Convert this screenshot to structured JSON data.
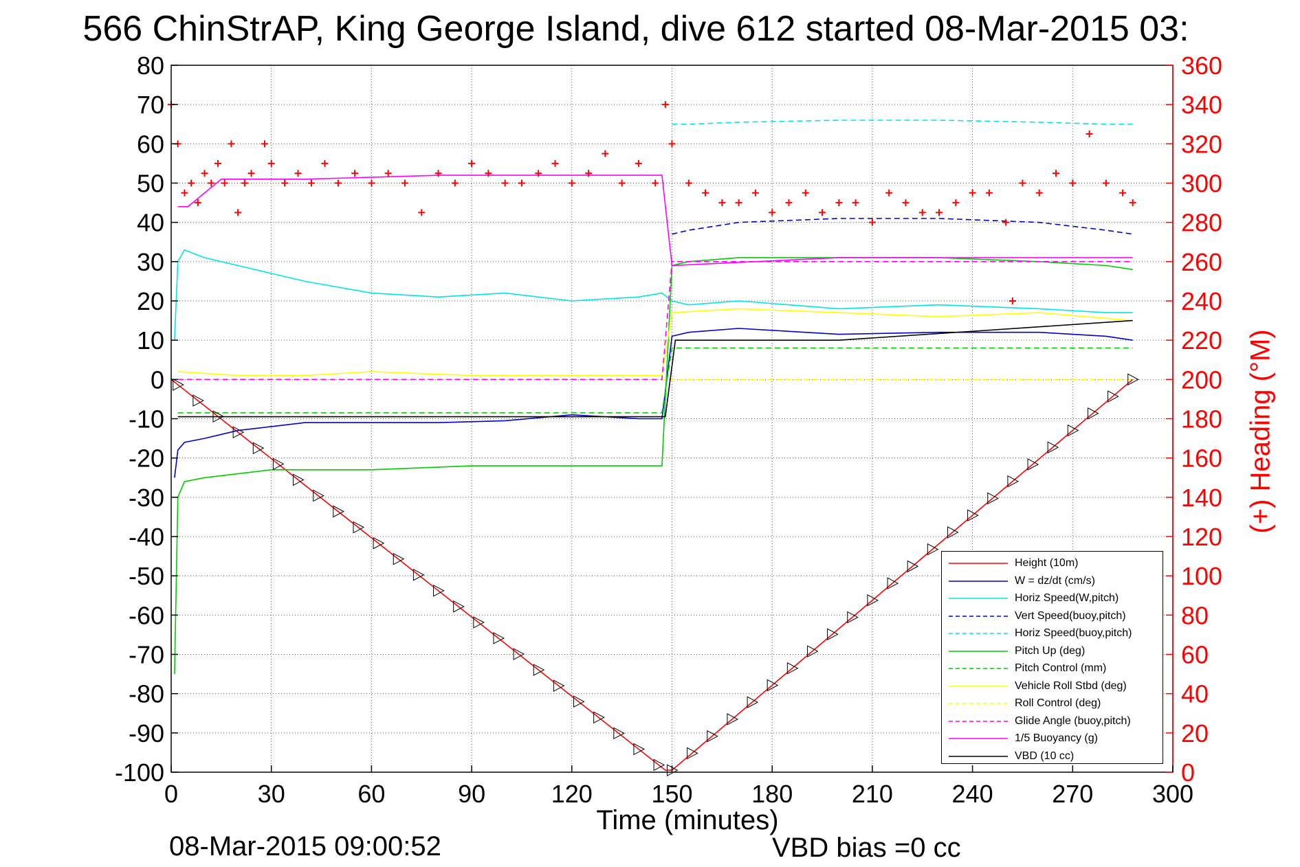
{
  "title": "566 ChinStrAP, King George Island, dive 612 started 08-Mar-2015 03:",
  "timestamp": "08-Mar-2015 09:00:52",
  "vbd_bias": "VBD bias =0 cc",
  "chart_data": {
    "type": "line",
    "title": "566 ChinStrAP, King George Island, dive 612 started 08-Mar-2015 03:",
    "xlabel": "Time (minutes)",
    "ylabel": "",
    "ylabel_right": "(+) Heading (°M)",
    "xlim": [
      0,
      300
    ],
    "ylim": [
      -100,
      80
    ],
    "ylim_right": [
      0,
      360
    ],
    "xticks": [
      "0",
      "30",
      "60",
      "90",
      "120",
      "150",
      "180",
      "210",
      "240",
      "270",
      "300"
    ],
    "yticks": [
      "-100",
      "-90",
      "-80",
      "-70",
      "-60",
      "-50",
      "-40",
      "-30",
      "-20",
      "-10",
      "0",
      "10",
      "20",
      "30",
      "40",
      "50",
      "60",
      "70",
      "80"
    ],
    "yticks_right": [
      "0",
      "20",
      "40",
      "60",
      "80",
      "100",
      "120",
      "140",
      "160",
      "180",
      "200",
      "220",
      "240",
      "260",
      "280",
      "300",
      "320",
      "340",
      "360"
    ],
    "grid": true,
    "legend_position": "bottom-right",
    "series": [
      {
        "name": "Height (10m)",
        "color": "#ff0000",
        "style": "solid",
        "x": [
          0,
          148,
          150,
          288
        ],
        "y": [
          0,
          -99.5,
          -99.5,
          0
        ]
      },
      {
        "name": "W = dz/dt (cm/s)",
        "color": "#0000cc",
        "style": "solid",
        "x": [
          1,
          2,
          4,
          10,
          20,
          30,
          40,
          60,
          80,
          100,
          120,
          140,
          147,
          150,
          155,
          170,
          200,
          230,
          260,
          280,
          288
        ],
        "y": [
          -25,
          -18,
          -16,
          -15,
          -13,
          -12,
          -11,
          -11,
          -11,
          -10.5,
          -9,
          -10,
          -10,
          11,
          12,
          13,
          11.5,
          12,
          12,
          11,
          10
        ]
      },
      {
        "name": "Horiz Speed(W,pitch)",
        "color": "#00e5e5",
        "style": "solid",
        "x": [
          1,
          2,
          4,
          10,
          20,
          30,
          40,
          60,
          80,
          100,
          120,
          140,
          147,
          150,
          155,
          170,
          200,
          230,
          260,
          280,
          288
        ],
        "y": [
          10,
          30,
          33,
          31,
          29,
          27,
          25,
          22,
          21,
          22,
          20,
          21,
          22,
          20,
          19,
          20,
          18,
          19,
          18,
          17,
          17
        ]
      },
      {
        "name": "Vert Speed(buoy,pitch)",
        "color": "#0000cc",
        "style": "dashed",
        "x": [
          150,
          155,
          170,
          200,
          230,
          260,
          280,
          288
        ],
        "y": [
          37,
          38,
          40,
          41,
          41,
          40,
          38,
          37
        ]
      },
      {
        "name": "Horiz Speed(buoy,pitch)",
        "color": "#00e5e5",
        "style": "dashed",
        "x": [
          150,
          155,
          170,
          200,
          230,
          260,
          280,
          288
        ],
        "y": [
          65,
          65,
          65.5,
          66,
          66,
          65.5,
          65,
          65
        ]
      },
      {
        "name": "Pitch Up (deg)",
        "color": "#00cc00",
        "style": "solid",
        "x": [
          1,
          2,
          4,
          10,
          30,
          60,
          90,
          120,
          147,
          150,
          155,
          170,
          200,
          230,
          260,
          280,
          288
        ],
        "y": [
          -75,
          -30,
          -26,
          -25,
          -23,
          -23,
          -22,
          -22,
          -22,
          29,
          30,
          31,
          31,
          31,
          30,
          29,
          28
        ]
      },
      {
        "name": "Pitch Control (mm)",
        "color": "#00cc00",
        "style": "dashed",
        "x": [
          2,
          147,
          150,
          288
        ],
        "y": [
          -8.5,
          -8.5,
          8,
          8
        ]
      },
      {
        "name": "Vehicle Roll Stbd (deg)",
        "color": "#ffff00",
        "style": "solid",
        "x": [
          2,
          20,
          40,
          60,
          90,
          120,
          147,
          150,
          170,
          200,
          230,
          260,
          288
        ],
        "y": [
          2,
          1,
          1,
          2,
          1,
          1,
          1,
          17,
          18,
          17,
          16,
          17,
          15
        ]
      },
      {
        "name": "Roll Control (deg)",
        "color": "#ffff00",
        "style": "dashed",
        "x": [
          2,
          147,
          150,
          288
        ],
        "y": [
          0,
          0,
          0,
          0
        ]
      },
      {
        "name": "Glide Angle (buoy,pitch)",
        "color": "#ff00ff",
        "style": "dashed",
        "x": [
          2,
          147,
          150,
          288
        ],
        "y": [
          0,
          0,
          30,
          30
        ]
      },
      {
        "name": "1/5 Buoyancy (g)",
        "color": "#ff00ff",
        "style": "solid",
        "x": [
          2,
          5,
          15,
          40,
          80,
          120,
          147,
          150,
          200,
          288
        ],
        "y": [
          44,
          44,
          51,
          51,
          52,
          52,
          52,
          29,
          31,
          31
        ]
      },
      {
        "name": "VBD (10 cc)",
        "color": "#000000",
        "style": "solid",
        "x": [
          2,
          148,
          151,
          200,
          288
        ],
        "y": [
          -9.5,
          -9.5,
          10,
          10,
          15
        ]
      },
      {
        "name": "Heading",
        "color": "#ff0000",
        "style": "markers",
        "marker": "+",
        "axis": "right",
        "x": [
          0,
          2,
          4,
          6,
          8,
          10,
          12,
          14,
          16,
          18,
          20,
          22,
          24,
          28,
          30,
          34,
          38,
          42,
          46,
          50,
          55,
          60,
          65,
          70,
          75,
          80,
          85,
          90,
          95,
          100,
          105,
          110,
          115,
          120,
          125,
          130,
          135,
          140,
          145,
          148,
          150,
          155,
          160,
          165,
          170,
          175,
          180,
          185,
          190,
          195,
          200,
          205,
          210,
          215,
          220,
          225,
          230,
          235,
          240,
          245,
          250,
          252,
          255,
          260,
          265,
          270,
          275,
          280,
          285,
          288
        ],
        "y": [
          340,
          320,
          295,
          300,
          290,
          305,
          300,
          310,
          300,
          320,
          285,
          300,
          305,
          320,
          310,
          300,
          305,
          300,
          310,
          300,
          305,
          300,
          305,
          300,
          285,
          305,
          300,
          310,
          305,
          300,
          300,
          305,
          310,
          300,
          305,
          315,
          300,
          310,
          300,
          340,
          320,
          300,
          295,
          290,
          290,
          295,
          285,
          290,
          295,
          285,
          290,
          290,
          280,
          295,
          290,
          285,
          285,
          290,
          295,
          295,
          280,
          240,
          300,
          295,
          305,
          300,
          325,
          300,
          295,
          290
        ]
      }
    ]
  },
  "legend": [
    {
      "label": "Height (10m)",
      "color": "#ff0000",
      "dash": ""
    },
    {
      "label": "W = dz/dt (cm/s)",
      "color": "#0000cc",
      "dash": ""
    },
    {
      "label": "Horiz Speed(W,pitch)",
      "color": "#00e5e5",
      "dash": ""
    },
    {
      "label": "Vert Speed(buoy,pitch)",
      "color": "#0000cc",
      "dash": "6,4"
    },
    {
      "label": "Horiz Speed(buoy,pitch)",
      "color": "#00e5e5",
      "dash": "6,4"
    },
    {
      "label": "Pitch Up (deg)",
      "color": "#00cc00",
      "dash": ""
    },
    {
      "label": "Pitch Control (mm)",
      "color": "#00cc00",
      "dash": "6,4"
    },
    {
      "label": "Vehicle Roll Stbd (deg)",
      "color": "#ffff00",
      "dash": ""
    },
    {
      "label": "Roll Control (deg)",
      "color": "#ffff00",
      "dash": "6,4"
    },
    {
      "label": "Glide Angle (buoy,pitch)",
      "color": "#ff00ff",
      "dash": "6,4"
    },
    {
      "label": "1/5 Buoyancy (g)",
      "color": "#ff00ff",
      "dash": ""
    },
    {
      "label": "VBD (10 cc)",
      "color": "#000000",
      "dash": ""
    }
  ]
}
